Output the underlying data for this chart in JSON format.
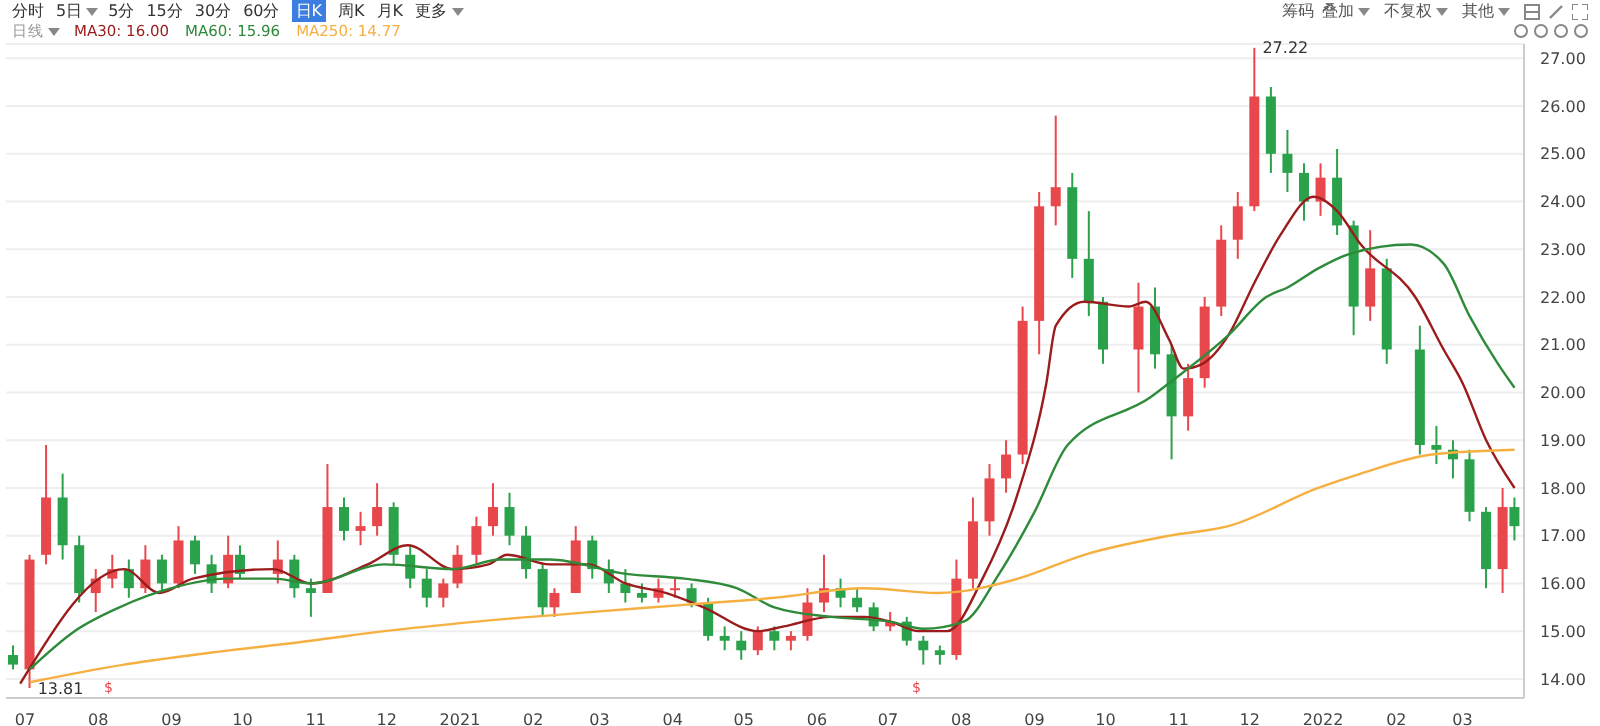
{
  "chart_data": {
    "type": "candlestick",
    "x": [
      "2020-06-26",
      "2020-07-03",
      "2020-07-10",
      "2020-07-17",
      "2020-07-24",
      "2020-07-31",
      "2020-08-07",
      "2020-08-14",
      "2020-08-21",
      "2020-08-28",
      "2020-09-04",
      "2020-09-11",
      "2020-09-18",
      "2020-09-25",
      "2020-09-30",
      "2020-10-16",
      "2020-10-23",
      "2020-10-30",
      "2020-11-06",
      "2020-11-13",
      "2020-11-20",
      "2020-11-27",
      "2020-12-04",
      "2020-12-11",
      "2020-12-18",
      "2020-12-25",
      "2020-12-31",
      "2021-01-08",
      "2021-01-15",
      "2021-01-22",
      "2021-01-29",
      "2021-02-05",
      "2021-02-10",
      "2021-02-19",
      "2021-02-26",
      "2021-03-05",
      "2021-03-12",
      "2021-03-19",
      "2021-03-26",
      "2021-04-02",
      "2021-04-09",
      "2021-04-16",
      "2021-04-23",
      "2021-04-30",
      "2021-05-07",
      "2021-05-14",
      "2021-05-21",
      "2021-05-28",
      "2021-06-04",
      "2021-06-11",
      "2021-06-18",
      "2021-06-25",
      "2021-07-02",
      "2021-07-09",
      "2021-07-16",
      "2021-07-23",
      "2021-07-30",
      "2021-08-06",
      "2021-08-13",
      "2021-08-20",
      "2021-08-27",
      "2021-09-03",
      "2021-09-10",
      "2021-09-17",
      "2021-09-24",
      "2021-09-30",
      "2021-10-15",
      "2021-10-22",
      "2021-10-29",
      "2021-11-05",
      "2021-11-12",
      "2021-11-19",
      "2021-11-26",
      "2021-12-03",
      "2021-12-10",
      "2021-12-17",
      "2021-12-24",
      "2021-12-31",
      "2022-01-07",
      "2022-01-14",
      "2022-01-21",
      "2022-01-28",
      "2022-02-11",
      "2022-02-18",
      "2022-02-25",
      "2022-03-04",
      "2022-03-11",
      "2022-03-18",
      "2022-03-23"
    ],
    "ohlc": [
      [
        14.5,
        14.7,
        14.2,
        14.3
      ],
      [
        14.2,
        16.6,
        13.81,
        16.5
      ],
      [
        16.6,
        18.9,
        16.4,
        17.8
      ],
      [
        17.8,
        18.3,
        16.5,
        16.8
      ],
      [
        16.8,
        17.0,
        15.6,
        15.8
      ],
      [
        15.8,
        16.3,
        15.4,
        16.1
      ],
      [
        16.1,
        16.6,
        15.9,
        16.3
      ],
      [
        16.3,
        16.5,
        15.7,
        15.9
      ],
      [
        15.9,
        16.8,
        15.8,
        16.5
      ],
      [
        16.5,
        16.6,
        15.8,
        16.0
      ],
      [
        16.0,
        17.2,
        15.9,
        16.9
      ],
      [
        16.9,
        17.0,
        16.2,
        16.4
      ],
      [
        16.4,
        16.6,
        15.8,
        16.0
      ],
      [
        16.0,
        17.0,
        15.9,
        16.6
      ],
      [
        16.6,
        16.8,
        16.1,
        16.2
      ],
      [
        16.2,
        16.9,
        16.0,
        16.5
      ],
      [
        16.5,
        16.6,
        15.7,
        15.9
      ],
      [
        15.9,
        16.1,
        15.3,
        15.8
      ],
      [
        15.8,
        18.5,
        15.8,
        17.6
      ],
      [
        17.6,
        17.8,
        16.9,
        17.1
      ],
      [
        17.1,
        17.5,
        16.8,
        17.2
      ],
      [
        17.2,
        18.1,
        17.0,
        17.6
      ],
      [
        17.6,
        17.7,
        16.4,
        16.6
      ],
      [
        16.6,
        16.8,
        15.9,
        16.1
      ],
      [
        16.1,
        16.3,
        15.5,
        15.7
      ],
      [
        15.7,
        16.1,
        15.5,
        16.0
      ],
      [
        16.0,
        16.8,
        15.9,
        16.6
      ],
      [
        16.6,
        17.4,
        16.4,
        17.2
      ],
      [
        17.2,
        18.1,
        17.0,
        17.6
      ],
      [
        17.6,
        17.9,
        16.8,
        17.0
      ],
      [
        17.0,
        17.2,
        16.1,
        16.3
      ],
      [
        16.3,
        16.4,
        15.3,
        15.5
      ],
      [
        15.5,
        15.9,
        15.3,
        15.8
      ],
      [
        15.8,
        17.2,
        15.8,
        16.9
      ],
      [
        16.9,
        17.0,
        16.1,
        16.3
      ],
      [
        16.3,
        16.5,
        15.8,
        16.0
      ],
      [
        16.0,
        16.3,
        15.6,
        15.8
      ],
      [
        15.8,
        16.0,
        15.6,
        15.7
      ],
      [
        15.7,
        16.1,
        15.6,
        15.9
      ],
      [
        15.9,
        16.1,
        15.7,
        15.9
      ],
      [
        15.9,
        16.0,
        15.5,
        15.6
      ],
      [
        15.6,
        15.7,
        14.8,
        14.9
      ],
      [
        14.9,
        15.1,
        14.6,
        14.8
      ],
      [
        14.8,
        15.0,
        14.4,
        14.6
      ],
      [
        14.6,
        15.1,
        14.5,
        15.0
      ],
      [
        15.0,
        15.1,
        14.6,
        14.8
      ],
      [
        14.8,
        15.0,
        14.6,
        14.9
      ],
      [
        14.9,
        15.9,
        14.8,
        15.6
      ],
      [
        15.6,
        16.6,
        15.4,
        15.9
      ],
      [
        15.9,
        16.1,
        15.5,
        15.7
      ],
      [
        15.7,
        15.9,
        15.4,
        15.5
      ],
      [
        15.5,
        15.6,
        15.0,
        15.1
      ],
      [
        15.1,
        15.4,
        15.0,
        15.2
      ],
      [
        15.2,
        15.3,
        14.7,
        14.8
      ],
      [
        14.8,
        14.9,
        14.3,
        14.6
      ],
      [
        14.6,
        14.7,
        14.3,
        14.5
      ],
      [
        14.5,
        16.5,
        14.4,
        16.1
      ],
      [
        16.1,
        17.8,
        15.9,
        17.3
      ],
      [
        17.3,
        18.5,
        17.0,
        18.2
      ],
      [
        18.2,
        19.0,
        17.9,
        18.7
      ],
      [
        18.7,
        21.8,
        18.5,
        21.5
      ],
      [
        21.5,
        24.2,
        20.8,
        23.9
      ],
      [
        23.9,
        25.8,
        23.5,
        24.3
      ],
      [
        24.3,
        24.6,
        22.4,
        22.8
      ],
      [
        22.8,
        23.8,
        21.6,
        21.9
      ],
      [
        21.9,
        22.0,
        20.6,
        20.9
      ],
      [
        20.9,
        22.3,
        20.0,
        21.8
      ],
      [
        21.8,
        22.2,
        20.5,
        20.8
      ],
      [
        20.8,
        21.0,
        18.6,
        19.5
      ],
      [
        19.5,
        20.6,
        19.2,
        20.3
      ],
      [
        20.3,
        22.0,
        20.1,
        21.8
      ],
      [
        21.8,
        23.5,
        21.6,
        23.2
      ],
      [
        23.2,
        24.2,
        22.8,
        23.9
      ],
      [
        23.9,
        27.22,
        23.8,
        26.2
      ],
      [
        26.2,
        26.4,
        24.6,
        25.0
      ],
      [
        25.0,
        25.5,
        24.2,
        24.6
      ],
      [
        24.6,
        24.8,
        23.6,
        24.0
      ],
      [
        24.0,
        24.8,
        23.7,
        24.5
      ],
      [
        24.5,
        25.1,
        23.3,
        23.5
      ],
      [
        23.5,
        23.6,
        21.2,
        21.8
      ],
      [
        21.8,
        23.4,
        21.5,
        22.6
      ],
      [
        22.6,
        22.8,
        20.6,
        20.9
      ],
      [
        20.9,
        21.4,
        18.7,
        18.9
      ],
      [
        18.9,
        19.3,
        18.5,
        18.8
      ],
      [
        18.8,
        19.0,
        18.2,
        18.6
      ],
      [
        18.6,
        18.8,
        17.3,
        17.5
      ],
      [
        17.5,
        17.6,
        15.9,
        16.3
      ],
      [
        16.3,
        18.0,
        15.8,
        17.6
      ],
      [
        17.6,
        17.8,
        16.9,
        17.2
      ]
    ],
    "series": [
      {
        "type": "line",
        "name": "MA30: 16.00",
        "color": "#9b1c1c",
        "x": [
          "2020-06-29",
          "2020-08-12",
          "2020-08-27",
          "2020-09-10",
          "2020-10-14",
          "2020-10-30",
          "2020-11-23",
          "2020-12-10",
          "2020-12-29",
          "2021-01-13",
          "2021-01-21",
          "2021-02-08",
          "2021-02-24",
          "2021-03-12",
          "2021-03-29",
          "2021-04-14",
          "2021-05-07",
          "2021-05-18",
          "2021-06-07",
          "2021-06-21",
          "2021-07-02",
          "2021-07-14",
          "2021-07-26",
          "2021-08-10",
          "2021-08-25",
          "2021-09-06",
          "2021-09-10",
          "2021-09-22",
          "2021-10-11",
          "2021-10-18",
          "2021-10-28",
          "2021-11-03",
          "2021-11-11",
          "2021-11-22",
          "2021-12-03",
          "2021-12-14",
          "2021-12-28",
          "2022-01-07",
          "2022-01-17",
          "2022-02-09",
          "2022-02-21",
          "2022-03-01",
          "2022-03-11",
          "2022-03-23"
        ],
        "values": [
          13.9,
          16.3,
          15.8,
          16.1,
          16.3,
          16.0,
          16.4,
          16.8,
          16.3,
          16.4,
          16.6,
          16.4,
          16.4,
          16.0,
          15.8,
          15.5,
          15.0,
          15.1,
          15.3,
          15.3,
          15.2,
          15.0,
          15.0,
          16.1,
          17.9,
          20.2,
          21.4,
          21.9,
          21.8,
          21.9,
          21.1,
          20.5,
          20.6,
          21.2,
          22.3,
          23.3,
          24.1,
          23.8,
          23.1,
          22.0,
          20.9,
          20.2,
          19.0,
          18.0
        ]
      },
      {
        "type": "line",
        "name": "MA60: 15.96",
        "color": "#2e8b3a",
        "x": [
          "2020-07-03",
          "2020-07-22",
          "2020-08-10",
          "2020-09-01",
          "2020-09-24",
          "2020-10-14",
          "2020-10-30",
          "2020-11-30",
          "2020-12-29",
          "2021-01-18",
          "2021-02-08",
          "2021-03-12",
          "2021-04-06",
          "2021-04-28",
          "2021-05-14",
          "2021-06-07",
          "2021-07-02",
          "2021-07-16",
          "2021-08-02",
          "2021-08-17",
          "2021-09-01",
          "2021-09-15",
          "2021-10-20",
          "2021-10-28",
          "2021-11-22",
          "2021-12-08",
          "2021-12-17",
          "2021-12-30",
          "2022-01-12",
          "2022-02-07",
          "2022-02-21",
          "2022-03-04",
          "2022-03-16",
          "2022-03-23"
        ],
        "values": [
          14.2,
          15.0,
          15.5,
          15.9,
          16.1,
          16.1,
          16.0,
          16.4,
          16.3,
          16.5,
          16.5,
          16.2,
          16.1,
          15.9,
          15.5,
          15.3,
          15.2,
          15.05,
          15.2,
          16.2,
          17.5,
          18.9,
          19.9,
          20.2,
          21.2,
          22.0,
          22.2,
          22.6,
          22.9,
          23.1,
          22.7,
          21.6,
          20.6,
          20.1
        ]
      },
      {
        "type": "line",
        "name": "MA250: 14.77",
        "color": "#f5b041",
        "x": [
          "2020-07-03",
          "2020-08-12",
          "2020-09-10",
          "2020-10-30",
          "2020-11-30",
          "2021-01-08",
          "2021-02-25",
          "2021-04-06",
          "2021-05-14",
          "2021-06-21",
          "2021-07-22",
          "2021-08-25",
          "2021-09-22",
          "2021-10-28",
          "2021-11-22",
          "2021-12-30",
          "2022-01-17",
          "2022-02-16",
          "2022-03-23"
        ],
        "values": [
          13.93,
          14.3,
          14.5,
          14.8,
          15.0,
          15.2,
          15.4,
          15.55,
          15.7,
          15.9,
          15.8,
          16.1,
          16.6,
          17.0,
          17.2,
          18.0,
          18.3,
          18.7,
          18.8
        ]
      }
    ],
    "xlim": [
      "2020-06-23",
      "2022-03-27"
    ],
    "xticks": [
      {
        "value": "2020-07-01",
        "label": "07"
      },
      {
        "value": "2020-08-01",
        "label": "08"
      },
      {
        "value": "2020-09-01",
        "label": "09"
      },
      {
        "value": "2020-10-01",
        "label": "10"
      },
      {
        "value": "2020-11-01",
        "label": "11"
      },
      {
        "value": "2020-12-01",
        "label": "12"
      },
      {
        "value": "2021-01-01",
        "label": "2021"
      },
      {
        "value": "2021-02-01",
        "label": "02"
      },
      {
        "value": "2021-03-01",
        "label": "03"
      },
      {
        "value": "2021-04-01",
        "label": "04"
      },
      {
        "value": "2021-05-01",
        "label": "05"
      },
      {
        "value": "2021-06-01",
        "label": "06"
      },
      {
        "value": "2021-07-01",
        "label": "07"
      },
      {
        "value": "2021-08-01",
        "label": "08"
      },
      {
        "value": "2021-09-01",
        "label": "09"
      },
      {
        "value": "2021-10-01",
        "label": "10"
      },
      {
        "value": "2021-11-01",
        "label": "11"
      },
      {
        "value": "2021-12-01",
        "label": "12"
      },
      {
        "value": "2022-01-01",
        "label": "2022"
      },
      {
        "value": "2022-02-01",
        "label": "02"
      },
      {
        "value": "2022-03-01",
        "label": "03"
      }
    ],
    "ylim": [
      13.6,
      27.3
    ],
    "yticks": [
      {
        "value": 14,
        "label": "14.00"
      },
      {
        "value": 15,
        "label": "15.00"
      },
      {
        "value": 16,
        "label": "16.00"
      },
      {
        "value": 17,
        "label": "17.00"
      },
      {
        "value": 18,
        "label": "18.00"
      },
      {
        "value": 19,
        "label": "19.00"
      },
      {
        "value": 20,
        "label": "20.00"
      },
      {
        "value": 21,
        "label": "21.00"
      },
      {
        "value": 22,
        "label": "22.00"
      },
      {
        "value": 23,
        "label": "23.00"
      },
      {
        "value": 24,
        "label": "24.00"
      },
      {
        "value": 25,
        "label": "25.00"
      },
      {
        "value": 26,
        "label": "26.00"
      },
      {
        "value": 27,
        "label": "27.00"
      }
    ],
    "grid": "y",
    "legend": "top left",
    "marker": "none",
    "line_style": "solid",
    "annotations": [
      "分时",
      "5日",
      "5分",
      "15分",
      "30分",
      "60分",
      "日K",
      "周K",
      "月K",
      "更多",
      "日线",
      "筹码",
      "叠加",
      "不复权",
      "其他",
      {
        "text": "13.81",
        "x": "2020-07-03",
        "y": 13.81
      },
      {
        "text": "27.22",
        "x": "2021-12-03",
        "y": 27.22
      },
      "$",
      "$"
    ]
  }
}
